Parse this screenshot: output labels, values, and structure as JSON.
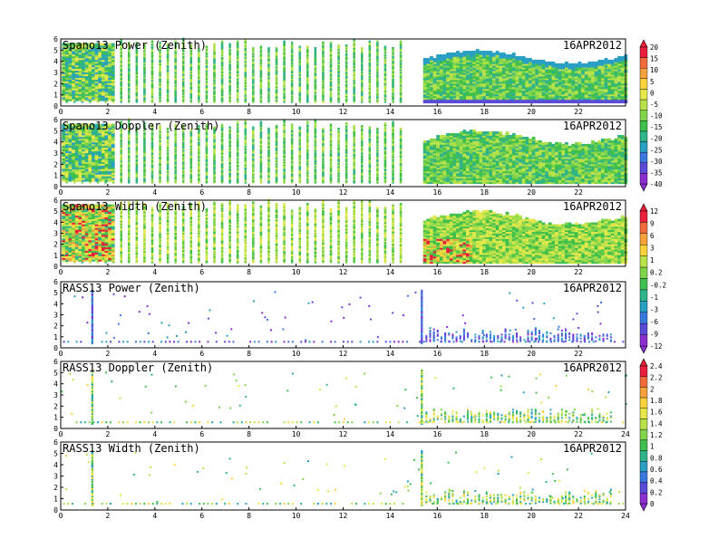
{
  "chart_data": [
    {
      "type": "heatmap",
      "title": "Spano13  Power  (Zenith)",
      "date": "16APR2012",
      "xlim": [
        0,
        24
      ],
      "ylim": [
        0,
        6
      ],
      "xticks": [
        "0",
        "2",
        "4",
        "6",
        "8",
        "10",
        "12",
        "14",
        "16",
        "18",
        "20",
        "22"
      ],
      "yticks": [
        "0",
        "1",
        "2",
        "3",
        "4",
        "5",
        "6"
      ],
      "data_pattern": "discrete gates 0–14.6 h; dense block 15.4–24 h",
      "colorbar": {
        "labels": [
          "20",
          "15",
          "10",
          "5",
          "0",
          "-5",
          "-10",
          "-15",
          "-20",
          "-25",
          "-30",
          "-35",
          "-40"
        ],
        "colors": [
          "#e8203c",
          "#f06a3c",
          "#f5a23c",
          "#fad23c",
          "#e6e84a",
          "#b8e24a",
          "#7fd44c",
          "#3fbf4c",
          "#2fb38a",
          "#2a9fc4",
          "#3a78e0",
          "#5a4ad8",
          "#8a2ed0"
        ]
      }
    },
    {
      "type": "heatmap",
      "title": "Spano13  Doppler  (Zenith)",
      "date": "16APR2012",
      "xlim": [
        0,
        24
      ],
      "ylim": [
        0,
        6
      ],
      "xticks": [
        "0",
        "2",
        "4",
        "6",
        "8",
        "10",
        "12",
        "14",
        "16",
        "18",
        "20",
        "22"
      ],
      "yticks": [
        "0",
        "1",
        "2",
        "3",
        "4",
        "5",
        "6"
      ],
      "data_pattern": "discrete gates 0–14.6 h; dense block 15.4–24 h"
    },
    {
      "type": "heatmap",
      "title": "Spano13  Width  (Zenith)",
      "date": "16APR2012",
      "xlim": [
        0,
        24
      ],
      "ylim": [
        0,
        6
      ],
      "xticks": [
        "0",
        "2",
        "4",
        "6",
        "8",
        "10",
        "12",
        "14",
        "16",
        "18",
        "20",
        "22"
      ],
      "yticks": [
        "0",
        "1",
        "2",
        "3",
        "4",
        "5",
        "6"
      ],
      "data_pattern": "discrete gates 0–14.6 h; dense block 15.4–24 h",
      "colorbar": {
        "labels": [
          "12",
          "9",
          "6",
          "3",
          "1",
          "0.2",
          "-0.2",
          "-1",
          "-3",
          "-6",
          "-9",
          "-12"
        ],
        "colors": [
          "#e8203c",
          "#f06a3c",
          "#f5a23c",
          "#fad23c",
          "#b8e24a",
          "#7fd44c",
          "#3fbf4c",
          "#2fb38a",
          "#2a9fc4",
          "#3a78e0",
          "#5a4ad8",
          "#8a2ed0"
        ]
      }
    },
    {
      "type": "scatter",
      "title": "RASS13  Power  (Zenith)",
      "date": "16APR2012",
      "xlim": [
        0,
        24
      ],
      "ylim": [
        0,
        6
      ],
      "xticks": [
        "0",
        "2",
        "4",
        "6",
        "8",
        "10",
        "12",
        "14",
        "16",
        "18",
        "20",
        "22"
      ],
      "yticks": [
        "0",
        "1",
        "2",
        "3",
        "4",
        "5",
        "6"
      ],
      "data_pattern": "sparse returns near 0.5–1.5 km; spikes near 1.3 h and 15.3 h"
    },
    {
      "type": "scatter",
      "title": "RASS13  Doppler  (Zenith)",
      "date": "16APR2012",
      "xlim": [
        0,
        24
      ],
      "ylim": [
        0,
        6
      ],
      "xticks": [
        "0",
        "2",
        "4",
        "6",
        "8",
        "10",
        "12",
        "14",
        "16",
        "18",
        "20",
        "22",
        "24"
      ],
      "yticks": [
        "0",
        "1",
        "2",
        "3",
        "4",
        "5",
        "6"
      ],
      "data_pattern": "sparse returns near 0.5–1.5 km; spikes near 1.3 h and 15.3 h",
      "colorbar": {
        "labels": [
          "2.4",
          "2.2",
          "2",
          "1.8",
          "1.6",
          "1.4",
          "1.2",
          "1",
          "0.8",
          "0.6",
          "0.4",
          "0.2",
          "0"
        ],
        "colors": [
          "#e8203c",
          "#f06a3c",
          "#f5a23c",
          "#fad23c",
          "#e6e84a",
          "#b8e24a",
          "#7fd44c",
          "#3fbf4c",
          "#2fb38a",
          "#2a9fc4",
          "#3a78e0",
          "#5a4ad8",
          "#8a2ed0"
        ]
      }
    },
    {
      "type": "scatter",
      "title": "RASS13  Width  (Zenith)",
      "date": "16APR2012",
      "xlim": [
        0,
        24
      ],
      "ylim": [
        0,
        6
      ],
      "xticks": [
        "0",
        "2",
        "4",
        "6",
        "8",
        "10",
        "12",
        "14",
        "16",
        "18",
        "20",
        "22",
        "24"
      ],
      "yticks": [
        "0",
        "1",
        "2",
        "3",
        "4",
        "5",
        "6"
      ],
      "data_pattern": "sparse returns near 0.5–1.5 km; spikes near 1.3 h and 15.3 h"
    }
  ]
}
